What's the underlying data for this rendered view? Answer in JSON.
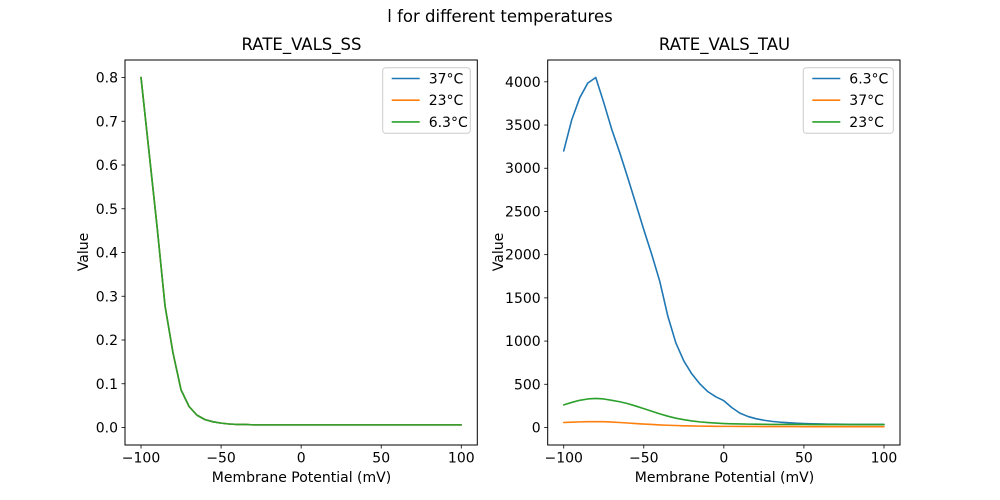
{
  "figure": {
    "suptitle": "l for different temperatures"
  },
  "chart_data": [
    {
      "type": "line",
      "title": "RATE_VALS_SS",
      "xlabel": "Membrane Potential (mV)",
      "ylabel": "Value",
      "xlim": [
        -110,
        110
      ],
      "ylim": [
        -0.04,
        0.84
      ],
      "xticks": [
        -100,
        -50,
        0,
        50,
        100
      ],
      "xtick_labels": [
        "−100",
        "−50",
        "0",
        "50",
        "100"
      ],
      "yticks": [
        0.0,
        0.1,
        0.2,
        0.3,
        0.4,
        0.5,
        0.6,
        0.7,
        0.8
      ],
      "ytick_labels": [
        "0.0",
        "0.1",
        "0.2",
        "0.3",
        "0.4",
        "0.5",
        "0.6",
        "0.7",
        "0.8"
      ],
      "legend_position": "upper right",
      "x": [
        -100,
        -95,
        -90,
        -85,
        -80,
        -75,
        -70,
        -65,
        -60,
        -55,
        -50,
        -45,
        -40,
        -35,
        -30,
        -25,
        -20,
        -15,
        -10,
        -5,
        0,
        5,
        10,
        15,
        20,
        25,
        30,
        35,
        40,
        45,
        50,
        55,
        60,
        65,
        70,
        75,
        80,
        85,
        90,
        95,
        100
      ],
      "series": [
        {
          "name": "37°C",
          "color": "#1f77b4",
          "values": [
            0.8,
            0.63,
            0.46,
            0.278,
            0.17,
            0.086,
            0.048,
            0.028,
            0.018,
            0.013,
            0.01,
            0.008,
            0.007,
            0.007,
            0.006,
            0.006,
            0.006,
            0.006,
            0.006,
            0.006,
            0.006,
            0.006,
            0.006,
            0.006,
            0.006,
            0.006,
            0.006,
            0.006,
            0.006,
            0.006,
            0.006,
            0.006,
            0.006,
            0.006,
            0.006,
            0.006,
            0.006,
            0.006,
            0.006,
            0.006,
            0.006
          ]
        },
        {
          "name": "23°C",
          "color": "#ff7f0e",
          "values": [
            0.8,
            0.63,
            0.46,
            0.278,
            0.17,
            0.086,
            0.048,
            0.028,
            0.018,
            0.013,
            0.01,
            0.008,
            0.007,
            0.007,
            0.006,
            0.006,
            0.006,
            0.006,
            0.006,
            0.006,
            0.006,
            0.006,
            0.006,
            0.006,
            0.006,
            0.006,
            0.006,
            0.006,
            0.006,
            0.006,
            0.006,
            0.006,
            0.006,
            0.006,
            0.006,
            0.006,
            0.006,
            0.006,
            0.006,
            0.006,
            0.006
          ]
        },
        {
          "name": "6.3°C",
          "color": "#2ca02c",
          "values": [
            0.8,
            0.63,
            0.46,
            0.278,
            0.17,
            0.086,
            0.048,
            0.028,
            0.018,
            0.013,
            0.01,
            0.008,
            0.007,
            0.007,
            0.006,
            0.006,
            0.006,
            0.006,
            0.006,
            0.006,
            0.006,
            0.006,
            0.006,
            0.006,
            0.006,
            0.006,
            0.006,
            0.006,
            0.006,
            0.006,
            0.006,
            0.006,
            0.006,
            0.006,
            0.006,
            0.006,
            0.006,
            0.006,
            0.006,
            0.006,
            0.006
          ]
        }
      ]
    },
    {
      "type": "line",
      "title": "RATE_VALS_TAU",
      "xlabel": "Membrane Potential (mV)",
      "ylabel": "Value",
      "xlim": [
        -110,
        110
      ],
      "ylim": [
        -202.5,
        4252.5
      ],
      "xticks": [
        -100,
        -50,
        0,
        50,
        100
      ],
      "xtick_labels": [
        "−100",
        "−50",
        "0",
        "50",
        "100"
      ],
      "yticks": [
        0,
        500,
        1000,
        1500,
        2000,
        2500,
        3000,
        3500,
        4000
      ],
      "ytick_labels": [
        "0",
        "500",
        "1000",
        "1500",
        "2000",
        "2500",
        "3000",
        "3500",
        "4000"
      ],
      "legend_position": "upper right",
      "x": [
        -100,
        -95,
        -90,
        -85,
        -80,
        -75,
        -70,
        -65,
        -60,
        -55,
        -50,
        -45,
        -40,
        -35,
        -30,
        -25,
        -20,
        -15,
        -10,
        -5,
        0,
        5,
        10,
        15,
        20,
        25,
        30,
        35,
        40,
        45,
        50,
        55,
        60,
        65,
        70,
        75,
        80,
        85,
        90,
        95,
        100
      ],
      "series": [
        {
          "name": "6.3°C",
          "color": "#1f77b4",
          "values": [
            3200,
            3560,
            3815,
            3985,
            4050,
            3760,
            3450,
            3180,
            2890,
            2590,
            2290,
            2000,
            1690,
            1290,
            980,
            770,
            620,
            505,
            415,
            355,
            310,
            230,
            166,
            128,
            102,
            84,
            71,
            62,
            56,
            50,
            46,
            43,
            41,
            39,
            38,
            37,
            36,
            36,
            35,
            35,
            35
          ]
        },
        {
          "name": "37°C",
          "color": "#ff7f0e",
          "values": [
            58,
            62,
            65,
            67,
            68,
            67,
            63,
            58,
            52,
            46,
            40,
            35,
            30,
            26,
            23,
            20,
            18,
            16,
            15,
            14,
            13,
            13,
            12,
            12,
            12,
            11,
            11,
            11,
            11,
            11,
            10,
            10,
            10,
            10,
            10,
            10,
            10,
            10,
            10,
            10,
            10
          ]
        },
        {
          "name": "23°C",
          "color": "#2ca02c",
          "values": [
            262,
            290,
            315,
            330,
            336,
            330,
            315,
            298,
            276,
            248,
            218,
            188,
            158,
            131,
            108,
            90,
            76,
            65,
            57,
            51,
            46,
            43,
            41,
            39,
            38,
            37,
            36,
            36,
            35,
            35,
            35,
            34,
            34,
            34,
            34,
            34,
            34,
            34,
            34,
            34,
            34
          ]
        }
      ]
    }
  ]
}
